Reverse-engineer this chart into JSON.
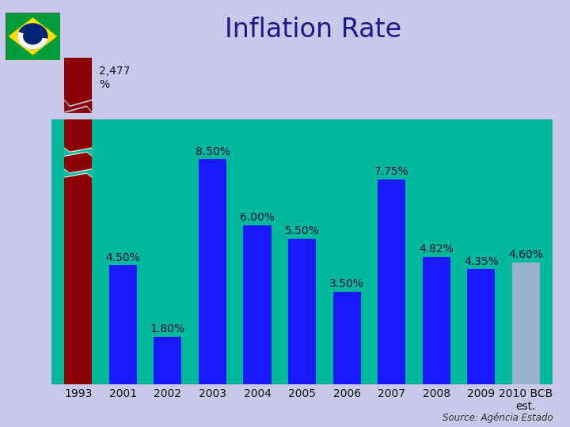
{
  "title": "Inflation Rate",
  "title_color": "#1a1a8c",
  "title_fontsize": 24,
  "background_color": "#c8c8e8",
  "plot_bg_color": "#00b89c",
  "categories": [
    "1993",
    "2001",
    "2002",
    "2003",
    "2004",
    "2005",
    "2006",
    "2007",
    "2008",
    "2009",
    "2010 BCB\nest."
  ],
  "values": [
    2477,
    4.5,
    1.8,
    8.5,
    6.0,
    5.5,
    3.5,
    7.75,
    4.82,
    4.35,
    4.6
  ],
  "bar_colors": [
    "#8b0000",
    "#1a1aff",
    "#1a1aff",
    "#1a1aff",
    "#1a1aff",
    "#1a1aff",
    "#1a1aff",
    "#1a1aff",
    "#1a1aff",
    "#1a1aff",
    "#99b3cc"
  ],
  "labels": [
    "2,477\n%",
    "4.50%",
    "1.80%",
    "8.50%",
    "6.00%",
    "5.50%",
    "3.50%",
    "7.75%",
    "4.82%",
    "4.35%",
    "4.60%"
  ],
  "source_text": "Source: Agência Estado",
  "ylim": [
    0,
    10
  ],
  "broken_bar_display": 10.0,
  "label_fontsize": 10,
  "axis_label_fontsize": 10,
  "flag_green": "#009c3b",
  "flag_yellow": "#ffdf00",
  "flag_blue": "#002776",
  "flag_white": "#ffffff"
}
